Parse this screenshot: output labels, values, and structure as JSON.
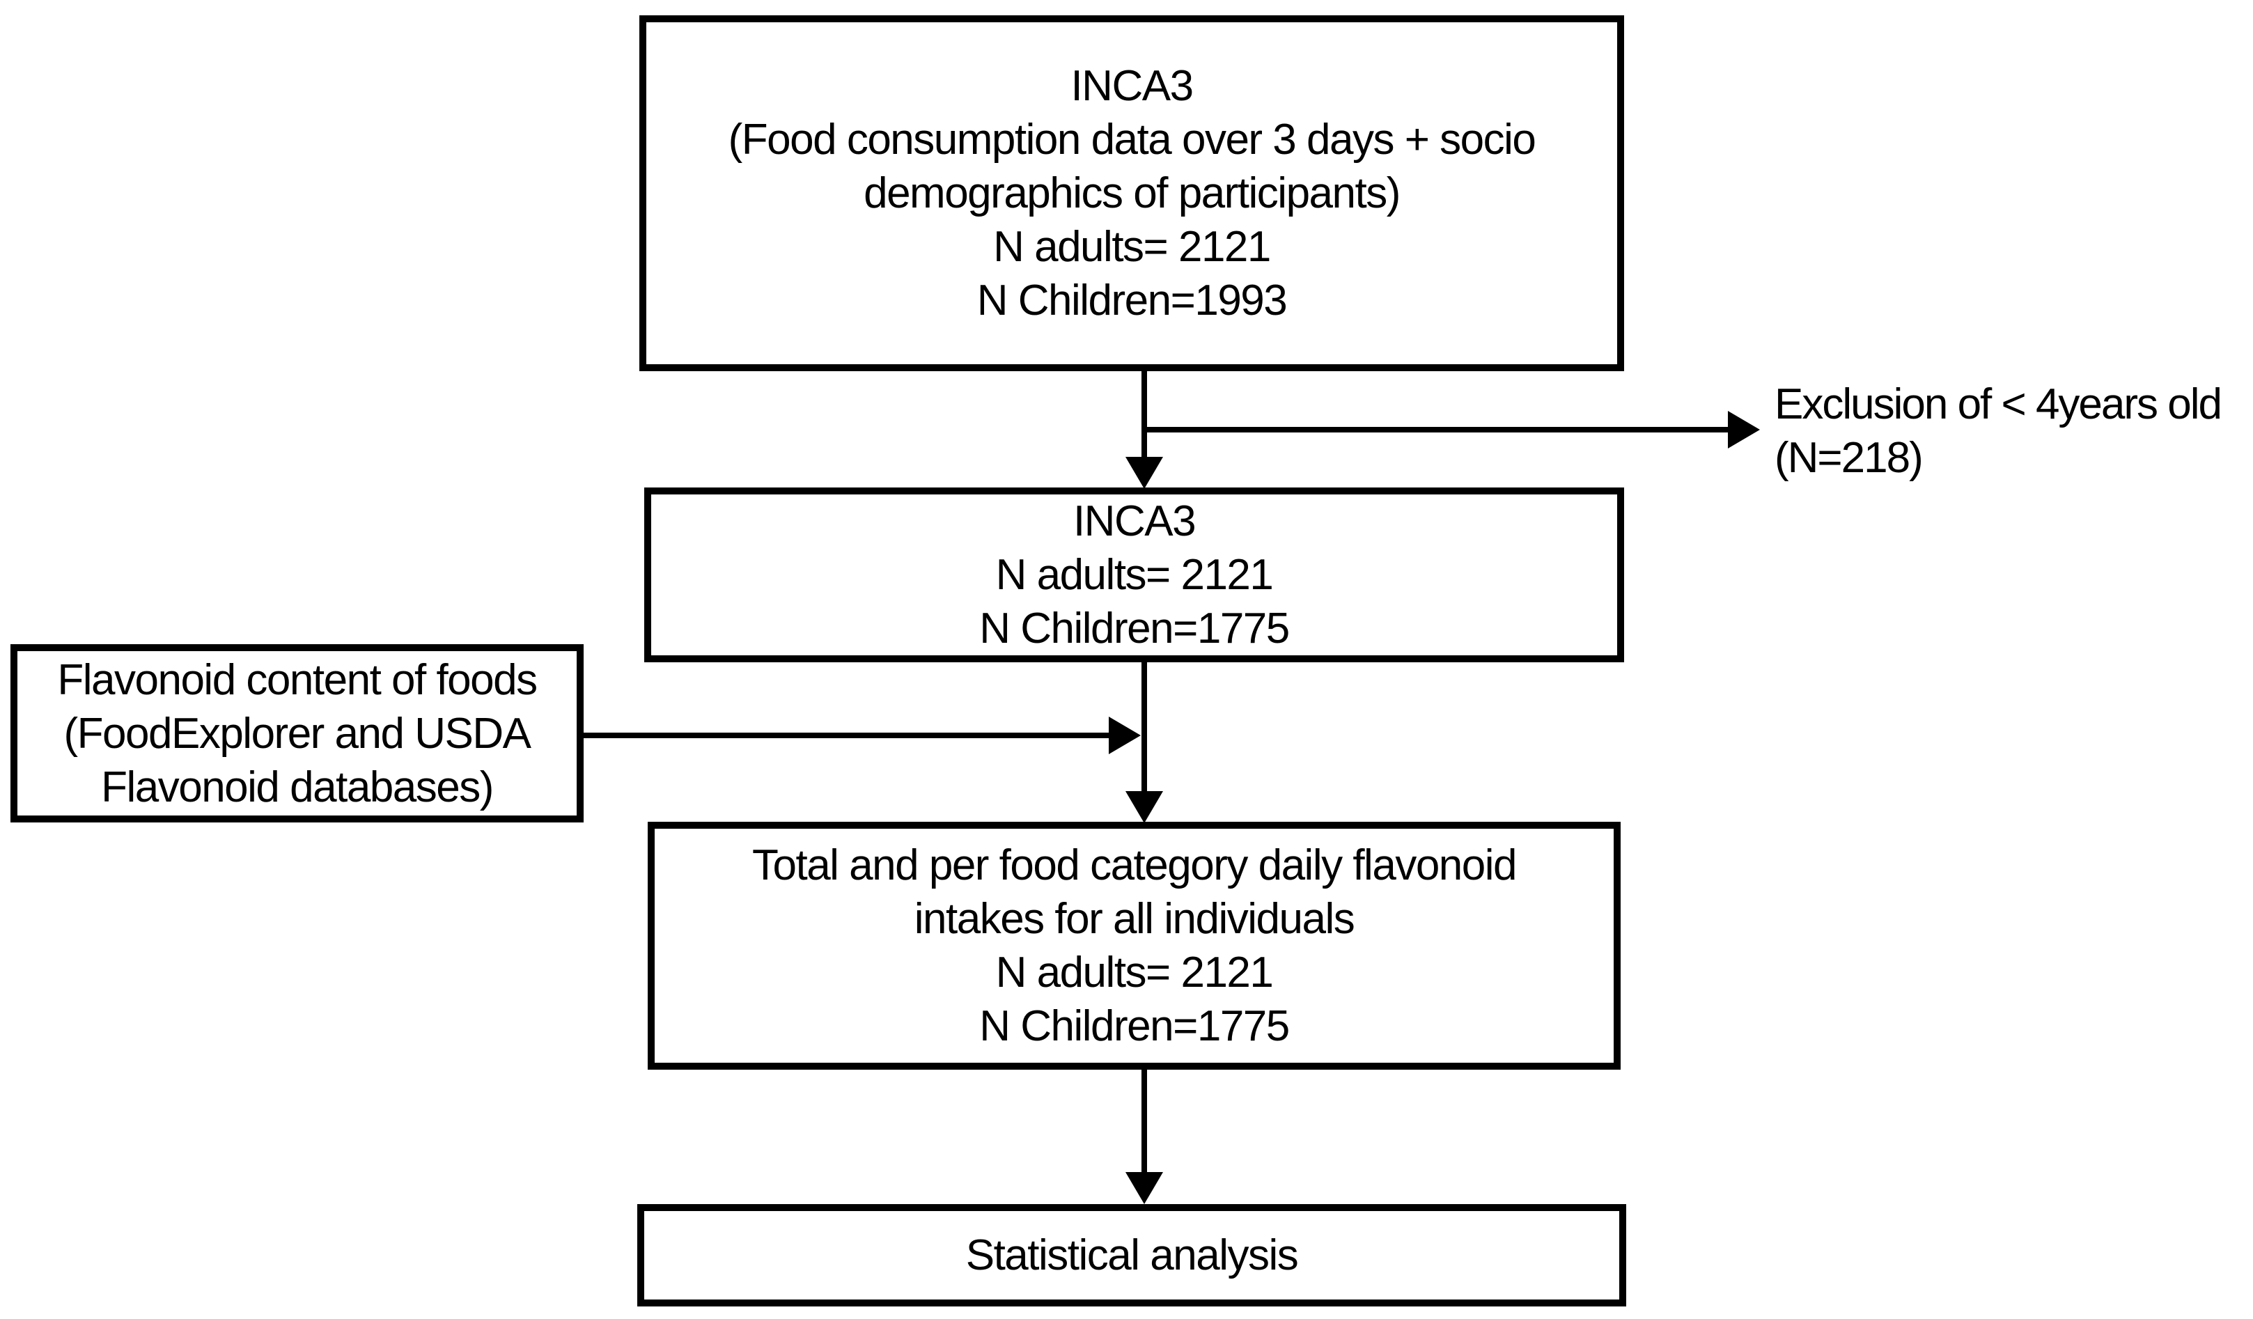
{
  "diagram": {
    "colors": {
      "stroke": "#000000",
      "background": "#ffffff",
      "text": "#000000"
    },
    "boxes": {
      "inca3_source": {
        "lines": [
          "INCA3",
          "(Food consumption data over 3 days + socio",
          "demographics of participants)",
          "N adults= 2121",
          "N Children=1993"
        ]
      },
      "inca3_filtered": {
        "lines": [
          "INCA3",
          "N adults= 2121",
          "N Children=1775"
        ]
      },
      "flavonoid_content": {
        "lines": [
          "Flavonoid content of foods",
          "(FoodExplorer and USDA",
          "Flavonoid databases)"
        ]
      },
      "intakes": {
        "lines": [
          "Total and per food category daily flavonoid",
          "intakes for all individuals",
          "N adults= 2121",
          "N Children=1775"
        ]
      },
      "statistical_analysis": {
        "lines": [
          "Statistical analysis"
        ]
      }
    },
    "annotations": {
      "exclusion": {
        "lines": [
          "Exclusion of < 4years old",
          "(N=218)"
        ]
      }
    }
  }
}
